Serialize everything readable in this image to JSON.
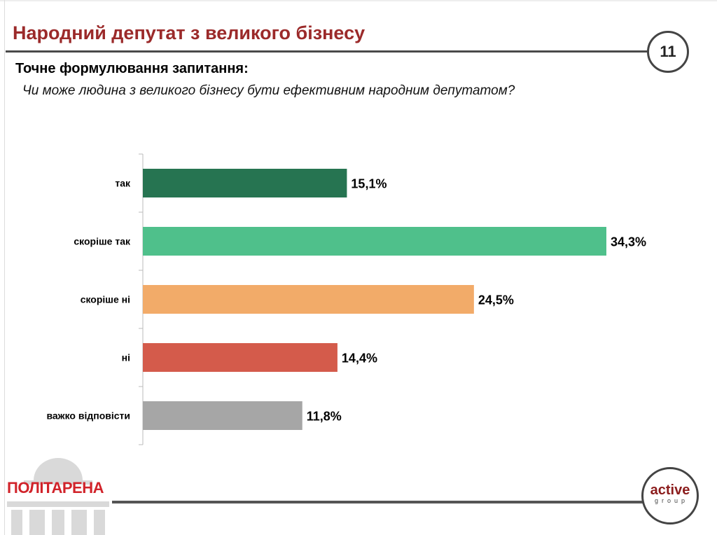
{
  "header": {
    "title": "Народний депутат з великого бізнесу",
    "page_number": "11"
  },
  "question": {
    "label": "Точне формулювання запитання:",
    "text": "Чи може людина з великого бізнесу бути ефективним народним депутатом?"
  },
  "footer": {
    "left_logo": "ПОЛІТАРЕНА",
    "right_logo_main": "active",
    "right_logo_sub": "group"
  },
  "chart_data": {
    "type": "bar",
    "orientation": "horizontal",
    "categories": [
      "так",
      "скоріше так",
      "скоріше ні",
      "ні",
      "важко відповісти"
    ],
    "values": [
      15.1,
      34.3,
      24.5,
      14.4,
      11.8
    ],
    "value_labels": [
      "15,1%",
      "34,3%",
      "24,5%",
      "14,4%",
      "11,8%"
    ],
    "colors": [
      "#267451",
      "#4fc08b",
      "#f2ab69",
      "#d45b4b",
      "#a6a6a6"
    ],
    "xlim": [
      0,
      35
    ],
    "grid": false,
    "legend": "none"
  }
}
